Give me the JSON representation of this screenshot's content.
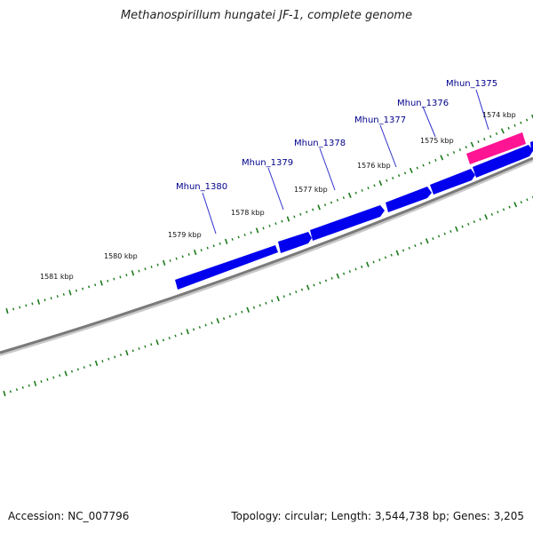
{
  "title": "Methanospirillum hungatei JF-1, complete genome",
  "footer": {
    "accession": "Accession: NC_007796",
    "summary": "Topology: circular; Length: 3,544,738 bp; Genes: 3,205"
  },
  "colors": {
    "backbone": "#808080",
    "gene": "#0000ee",
    "highlight_gene": "#ff1493",
    "ticks": "#1a7a1a",
    "gene_label": "#00008b"
  },
  "scale_labels": [
    "1574 kbp",
    "1575 kbp",
    "1576 kbp",
    "1577 kbp",
    "1578 kbp",
    "1579 kbp",
    "1580 kbp",
    "1581 kbp"
  ],
  "gene_labels": [
    "Mhun_1375",
    "Mhun_1376",
    "Mhun_1377",
    "Mhun_1378",
    "Mhun_1379",
    "Mhun_1380"
  ]
}
